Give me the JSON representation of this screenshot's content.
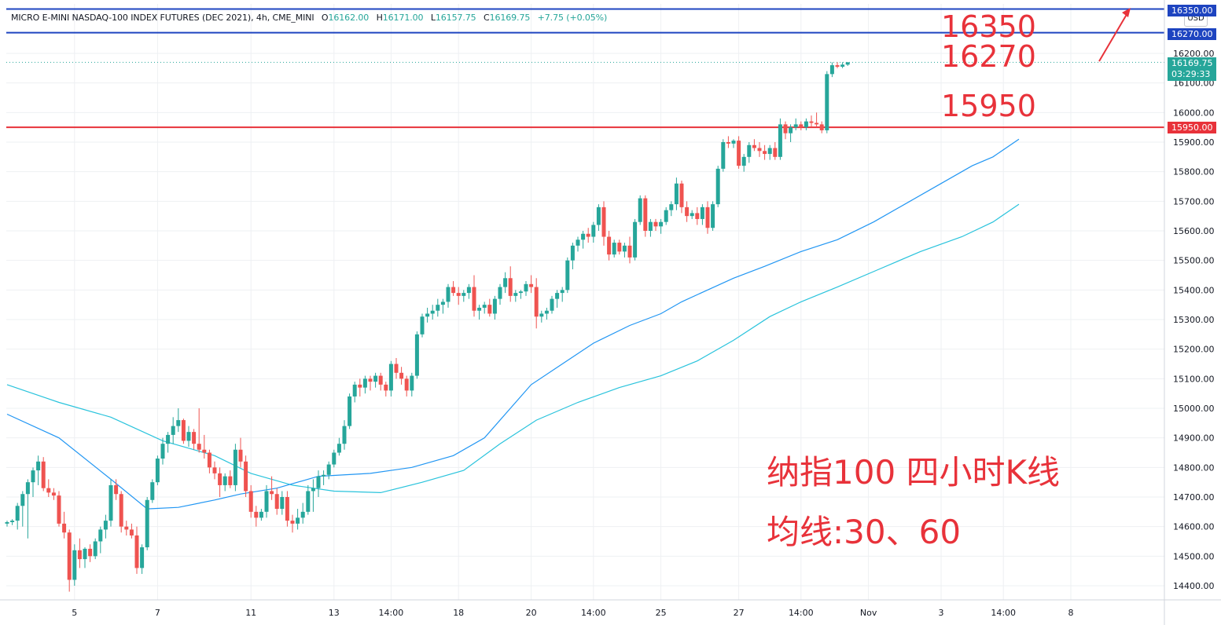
{
  "header": {
    "symbol": "MICRO E-MINI NASDAQ-100 INDEX FUTURES (DEC 2021), 4h, CME_MINI",
    "o_label": "O",
    "o_value": "16162.00",
    "h_label": "H",
    "h_value": "16171.00",
    "l_label": "L",
    "l_value": "16157.75",
    "c_label": "C",
    "c_value": "16169.75",
    "change": "+7.75 (+0.05%)"
  },
  "currency": "USD",
  "annotations": {
    "level_top": "16350",
    "level_mid": "16270",
    "level_low": "15950",
    "title_line1": "纳指100 四小时K线",
    "title_line2": "均线:30、60"
  },
  "price_tags": {
    "top_line": "16350.00",
    "mid_line": "16270.00",
    "current_price": "16169.75",
    "countdown": "03:29:33",
    "support_line": "15950.00"
  },
  "colors": {
    "up": "#26a69a",
    "down": "#ef5350",
    "ma30": "#2196f3",
    "ma60": "#29c3dc",
    "hline_blue": "#1e44c0",
    "hline_red": "#e8323a",
    "annotation": "#e8323a"
  },
  "chart_data": {
    "type": "candlestick",
    "timeframe": "4h",
    "y_axis": {
      "ticks": [
        14400,
        14500,
        14600,
        14700,
        14800,
        14900,
        15000,
        15100,
        15200,
        15300,
        15400,
        15500,
        15600,
        15700,
        15800,
        15900,
        16000,
        16100,
        16200
      ],
      "tick_labels": [
        "14400.00",
        "14500.00",
        "14600.00",
        "14700.00",
        "14800.00",
        "14900.00",
        "15000.00",
        "15100.00",
        "15200.00",
        "15300.00",
        "15400.00",
        "15500.00",
        "15600.00",
        "15700.00",
        "15800.00",
        "15900.00",
        "16000.00",
        "16100.00",
        "16200.00"
      ],
      "ylim": [
        14370,
        16380
      ]
    },
    "x_axis": {
      "tick_labels": [
        "5",
        "7",
        "11",
        "13",
        "14:00",
        "18",
        "20",
        "14:00",
        "25",
        "27",
        "14:00",
        "Nov",
        "3",
        "14:00",
        "8"
      ],
      "tick_bar_index": [
        13,
        29,
        47,
        63,
        74,
        87,
        101,
        113,
        126,
        141,
        153,
        166,
        180,
        192,
        205
      ]
    },
    "horizontal_lines": [
      {
        "value": 16350,
        "color": "blue"
      },
      {
        "value": 16270,
        "color": "blue"
      },
      {
        "value": 15950,
        "color": "red"
      }
    ],
    "last_price": 16169.75,
    "candles": [
      [
        14610,
        14620,
        14600,
        14615
      ],
      [
        14615,
        14625,
        14605,
        14620
      ],
      [
        14620,
        14680,
        14590,
        14670
      ],
      [
        14670,
        14720,
        14600,
        14710
      ],
      [
        14710,
        14760,
        14560,
        14750
      ],
      [
        14750,
        14800,
        14700,
        14790
      ],
      [
        14790,
        14840,
        14740,
        14820
      ],
      [
        14820,
        14835,
        14720,
        14730
      ],
      [
        14730,
        14760,
        14700,
        14715
      ],
      [
        14715,
        14730,
        14690,
        14705
      ],
      [
        14705,
        14720,
        14600,
        14610
      ],
      [
        14610,
        14650,
        14560,
        14580
      ],
      [
        14580,
        14590,
        14380,
        14420
      ],
      [
        14420,
        14540,
        14400,
        14520
      ],
      [
        14520,
        14560,
        14460,
        14490
      ],
      [
        14490,
        14530,
        14460,
        14525
      ],
      [
        14525,
        14540,
        14480,
        14500
      ],
      [
        14500,
        14560,
        14490,
        14550
      ],
      [
        14550,
        14600,
        14510,
        14590
      ],
      [
        14590,
        14640,
        14560,
        14620
      ],
      [
        14620,
        14760,
        14600,
        14740
      ],
      [
        14740,
        14760,
        14690,
        14710
      ],
      [
        14710,
        14720,
        14580,
        14600
      ],
      [
        14600,
        14620,
        14570,
        14590
      ],
      [
        14590,
        14610,
        14560,
        14570
      ],
      [
        14570,
        14600,
        14440,
        14460
      ],
      [
        14460,
        14540,
        14440,
        14530
      ],
      [
        14530,
        14700,
        14520,
        14690
      ],
      [
        14690,
        14760,
        14680,
        14750
      ],
      [
        14750,
        14840,
        14740,
        14830
      ],
      [
        14830,
        14900,
        14810,
        14880
      ],
      [
        14880,
        14920,
        14850,
        14910
      ],
      [
        14910,
        14970,
        14880,
        14940
      ],
      [
        14940,
        15000,
        14920,
        14960
      ],
      [
        14960,
        14965,
        14880,
        14890
      ],
      [
        14890,
        14940,
        14870,
        14920
      ],
      [
        14920,
        14930,
        14860,
        14880
      ],
      [
        14880,
        15000,
        14850,
        14860
      ],
      [
        14860,
        14910,
        14830,
        14850
      ],
      [
        14850,
        14860,
        14780,
        14800
      ],
      [
        14800,
        14820,
        14760,
        14780
      ],
      [
        14780,
        14800,
        14700,
        14740
      ],
      [
        14740,
        14780,
        14720,
        14770
      ],
      [
        14770,
        14790,
        14730,
        14740
      ],
      [
        14740,
        14880,
        14720,
        14860
      ],
      [
        14860,
        14900,
        14800,
        14820
      ],
      [
        14820,
        14840,
        14700,
        14720
      ],
      [
        14720,
        14740,
        14630,
        14650
      ],
      [
        14650,
        14670,
        14600,
        14630
      ],
      [
        14630,
        14660,
        14620,
        14650
      ],
      [
        14650,
        14740,
        14630,
        14720
      ],
      [
        14720,
        14770,
        14690,
        14710
      ],
      [
        14710,
        14730,
        14640,
        14660
      ],
      [
        14660,
        14720,
        14640,
        14700
      ],
      [
        14700,
        14720,
        14600,
        14620
      ],
      [
        14620,
        14640,
        14580,
        14610
      ],
      [
        14610,
        14660,
        14590,
        14630
      ],
      [
        14630,
        14680,
        14610,
        14650
      ],
      [
        14650,
        14740,
        14640,
        14720
      ],
      [
        14720,
        14760,
        14650,
        14730
      ],
      [
        14730,
        14790,
        14700,
        14770
      ],
      [
        14770,
        14790,
        14740,
        14775
      ],
      [
        14775,
        14820,
        14760,
        14810
      ],
      [
        14810,
        14860,
        14800,
        14850
      ],
      [
        14850,
        14900,
        14840,
        14880
      ],
      [
        14880,
        14960,
        14860,
        14940
      ],
      [
        14940,
        15050,
        14930,
        15040
      ],
      [
        15040,
        15090,
        15020,
        15080
      ],
      [
        15080,
        15100,
        15040,
        15070
      ],
      [
        15070,
        15110,
        15050,
        15100
      ],
      [
        15100,
        15110,
        15060,
        15090
      ],
      [
        15090,
        15120,
        15070,
        15110
      ],
      [
        15110,
        15120,
        15060,
        15080
      ],
      [
        15080,
        15090,
        15040,
        15060
      ],
      [
        15060,
        15160,
        15040,
        15150
      ],
      [
        15150,
        15170,
        15100,
        15120
      ],
      [
        15120,
        15140,
        15080,
        15100
      ],
      [
        15100,
        15110,
        15040,
        15060
      ],
      [
        15060,
        15120,
        15040,
        15110
      ],
      [
        15110,
        15260,
        15100,
        15250
      ],
      [
        15250,
        15320,
        15240,
        15310
      ],
      [
        15310,
        15340,
        15290,
        15320
      ],
      [
        15320,
        15350,
        15300,
        15330
      ],
      [
        15330,
        15370,
        15310,
        15350
      ],
      [
        15350,
        15370,
        15320,
        15360
      ],
      [
        15360,
        15420,
        15340,
        15410
      ],
      [
        15410,
        15430,
        15380,
        15390
      ],
      [
        15390,
        15410,
        15350,
        15380
      ],
      [
        15380,
        15400,
        15360,
        15390
      ],
      [
        15390,
        15420,
        15370,
        15410
      ],
      [
        15410,
        15450,
        15310,
        15330
      ],
      [
        15330,
        15350,
        15300,
        15340
      ],
      [
        15340,
        15360,
        15320,
        15350
      ],
      [
        15350,
        15370,
        15310,
        15320
      ],
      [
        15320,
        15380,
        15300,
        15370
      ],
      [
        15370,
        15420,
        15350,
        15410
      ],
      [
        15410,
        15460,
        15390,
        15440
      ],
      [
        15440,
        15480,
        15360,
        15380
      ],
      [
        15380,
        15400,
        15360,
        15390
      ],
      [
        15390,
        15400,
        15370,
        15395
      ],
      [
        15395,
        15430,
        15380,
        15420
      ],
      [
        15420,
        15450,
        15390,
        15410
      ],
      [
        15410,
        15440,
        15270,
        15310
      ],
      [
        15310,
        15330,
        15290,
        15320
      ],
      [
        15320,
        15340,
        15300,
        15330
      ],
      [
        15330,
        15380,
        15320,
        15370
      ],
      [
        15370,
        15400,
        15340,
        15390
      ],
      [
        15390,
        15410,
        15360,
        15400
      ],
      [
        15400,
        15510,
        15390,
        15500
      ],
      [
        15500,
        15560,
        15470,
        15550
      ],
      [
        15550,
        15580,
        15530,
        15570
      ],
      [
        15570,
        15600,
        15540,
        15590
      ],
      [
        15590,
        15610,
        15560,
        15580
      ],
      [
        15580,
        15630,
        15560,
        15620
      ],
      [
        15620,
        15690,
        15600,
        15680
      ],
      [
        15680,
        15700,
        15550,
        15580
      ],
      [
        15580,
        15600,
        15500,
        15520
      ],
      [
        15520,
        15570,
        15510,
        15560
      ],
      [
        15560,
        15570,
        15520,
        15530
      ],
      [
        15530,
        15560,
        15510,
        15550
      ],
      [
        15550,
        15580,
        15490,
        15510
      ],
      [
        15510,
        15640,
        15500,
        15630
      ],
      [
        15630,
        15720,
        15620,
        15710
      ],
      [
        15710,
        15720,
        15580,
        15600
      ],
      [
        15600,
        15640,
        15580,
        15630
      ],
      [
        15630,
        15640,
        15600,
        15615
      ],
      [
        15615,
        15640,
        15590,
        15630
      ],
      [
        15630,
        15680,
        15620,
        15670
      ],
      [
        15670,
        15700,
        15650,
        15690
      ],
      [
        15690,
        15780,
        15670,
        15760
      ],
      [
        15760,
        15770,
        15660,
        15680
      ],
      [
        15680,
        15700,
        15630,
        15650
      ],
      [
        15650,
        15670,
        15640,
        15660
      ],
      [
        15660,
        15680,
        15620,
        15640
      ],
      [
        15640,
        15690,
        15620,
        15680
      ],
      [
        15680,
        15700,
        15590,
        15610
      ],
      [
        15610,
        15700,
        15600,
        15690
      ],
      [
        15690,
        15820,
        15680,
        15810
      ],
      [
        15810,
        15910,
        15800,
        15900
      ],
      [
        15900,
        15920,
        15880,
        15895
      ],
      [
        15895,
        15910,
        15880,
        15905
      ],
      [
        15905,
        15920,
        15810,
        15820
      ],
      [
        15820,
        15860,
        15800,
        15850
      ],
      [
        15850,
        15900,
        15830,
        15890
      ],
      [
        15890,
        15910,
        15870,
        15880
      ],
      [
        15880,
        15900,
        15850,
        15870
      ],
      [
        15870,
        15890,
        15840,
        15860
      ],
      [
        15860,
        15890,
        15840,
        15880
      ],
      [
        15880,
        15900,
        15840,
        15850
      ],
      [
        15850,
        15980,
        15840,
        15960
      ],
      [
        15960,
        15970,
        15910,
        15930
      ],
      [
        15930,
        15960,
        15900,
        15950
      ],
      [
        15950,
        15980,
        15940,
        15960
      ],
      [
        15960,
        15970,
        15940,
        15950
      ],
      [
        15950,
        15980,
        15940,
        15970
      ],
      [
        15970,
        15990,
        15950,
        15965
      ],
      [
        15965,
        16000,
        15950,
        15960
      ],
      [
        15960,
        15970,
        15930,
        15940
      ],
      [
        15940,
        16140,
        15930,
        16130
      ],
      [
        16130,
        16170,
        16120,
        16160
      ],
      [
        16160,
        16170,
        16150,
        16155
      ],
      [
        16155,
        16170,
        16150,
        16162
      ],
      [
        16162,
        16171,
        16157.75,
        16169.75
      ]
    ],
    "ma30": [
      [
        0,
        14980
      ],
      [
        10,
        14900
      ],
      [
        20,
        14760
      ],
      [
        27,
        14660
      ],
      [
        33,
        14665
      ],
      [
        40,
        14690
      ],
      [
        45,
        14710
      ],
      [
        52,
        14730
      ],
      [
        60,
        14770
      ],
      [
        70,
        14780
      ],
      [
        78,
        14800
      ],
      [
        86,
        14840
      ],
      [
        92,
        14900
      ],
      [
        97,
        15000
      ],
      [
        101,
        15080
      ],
      [
        107,
        15150
      ],
      [
        113,
        15220
      ],
      [
        120,
        15280
      ],
      [
        126,
        15320
      ],
      [
        130,
        15360
      ],
      [
        135,
        15400
      ],
      [
        140,
        15440
      ],
      [
        146,
        15480
      ],
      [
        153,
        15530
      ],
      [
        160,
        15570
      ],
      [
        167,
        15630
      ],
      [
        174,
        15700
      ],
      [
        180,
        15760
      ],
      [
        186,
        15820
      ],
      [
        190,
        15850
      ],
      [
        195,
        15910
      ]
    ],
    "ma60": [
      [
        0,
        15080
      ],
      [
        10,
        15020
      ],
      [
        20,
        14970
      ],
      [
        30,
        14890
      ],
      [
        40,
        14840
      ],
      [
        47,
        14780
      ],
      [
        55,
        14740
      ],
      [
        63,
        14720
      ],
      [
        72,
        14715
      ],
      [
        80,
        14750
      ],
      [
        88,
        14790
      ],
      [
        95,
        14880
      ],
      [
        102,
        14960
      ],
      [
        110,
        15020
      ],
      [
        118,
        15070
      ],
      [
        126,
        15110
      ],
      [
        133,
        15160
      ],
      [
        140,
        15230
      ],
      [
        147,
        15310
      ],
      [
        153,
        15360
      ],
      [
        160,
        15410
      ],
      [
        168,
        15470
      ],
      [
        176,
        15530
      ],
      [
        184,
        15580
      ],
      [
        190,
        15630
      ],
      [
        195,
        15690
      ]
    ]
  }
}
